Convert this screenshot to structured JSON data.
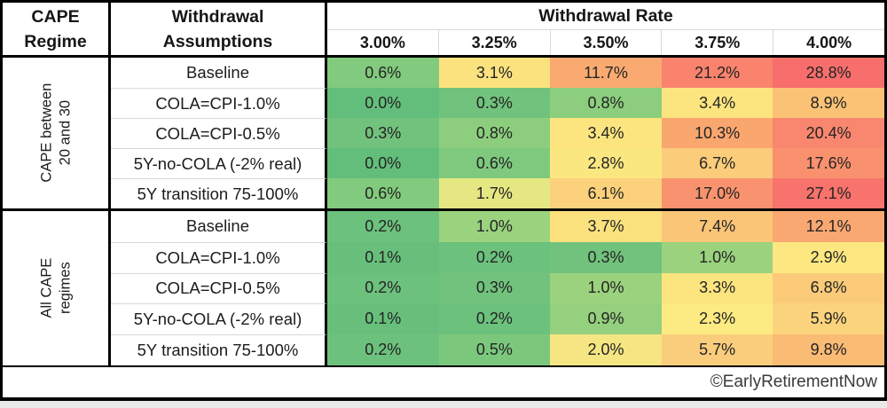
{
  "header": {
    "corner_line1": "CAPE",
    "corner_line2": "Regime",
    "assumptions_line1": "Withdrawal",
    "assumptions_line2": "Assumptions"
  },
  "footer": {
    "credit": "©EarlyRetirementNow"
  },
  "colors": {
    "border": "#000000",
    "grid_line": "#d9d9d9",
    "scale_min_green": "#63BE7B",
    "scale_mid_yellow": "#FFEB84",
    "scale_max_red": "#F8696B"
  },
  "chart_data": {
    "type": "heatmap",
    "title": "Withdrawal Rate",
    "columns": [
      "3.00%",
      "3.25%",
      "3.50%",
      "3.75%",
      "4.00%"
    ],
    "legend_position": "none",
    "row_groups": [
      {
        "group_label_line1": "CAPE between",
        "group_label_line2": "20 and 30",
        "rows": [
          {
            "label": "Baseline",
            "values": [
              "0.6%",
              "3.1%",
              "11.7%",
              "21.2%",
              "28.8%"
            ],
            "colors": [
              "#82CA7D",
              "#FCE27E",
              "#FAAA70",
              "#F9836D",
              "#F86E6C"
            ]
          },
          {
            "label": "COLA=CPI-1.0%",
            "values": [
              "0.0%",
              "0.3%",
              "0.8%",
              "3.4%",
              "8.9%"
            ],
            "colors": [
              "#63BE7B",
              "#71C27C",
              "#8CCE7D",
              "#FCE57F",
              "#FBC276"
            ]
          },
          {
            "label": "COLA=CPI-0.5%",
            "values": [
              "0.3%",
              "0.8%",
              "3.4%",
              "10.3%",
              "20.4%"
            ],
            "colors": [
              "#71C27C",
              "#8CCE7D",
              "#FCE57F",
              "#FAA66F",
              "#F9866E"
            ]
          },
          {
            "label": "5Y-no-COLA (-2% real)",
            "values": [
              "0.0%",
              "0.6%",
              "2.8%",
              "6.7%",
              "17.6%"
            ],
            "colors": [
              "#63BE7B",
              "#7EC97D",
              "#FBE780",
              "#FBCC7A",
              "#F9906E"
            ]
          },
          {
            "label": "5Y transition 75-100%",
            "values": [
              "0.6%",
              "1.7%",
              "6.1%",
              "17.0%",
              "27.1%"
            ],
            "colors": [
              "#82CA7D",
              "#E5E782",
              "#FCD17C",
              "#F9926E",
              "#F8736C"
            ]
          }
        ]
      },
      {
        "group_label_line1": "All CAPE",
        "group_label_line2": "regimes",
        "rows": [
          {
            "label": "Baseline",
            "values": [
              "0.2%",
              "1.0%",
              "3.7%",
              "7.4%",
              "12.1%"
            ],
            "colors": [
              "#6CC17C",
              "#9AD27E",
              "#FBE17D",
              "#FBC577",
              "#F9A871"
            ]
          },
          {
            "label": "COLA=CPI-1.0%",
            "values": [
              "0.1%",
              "0.2%",
              "0.3%",
              "1.0%",
              "2.9%"
            ],
            "colors": [
              "#67BF7B",
              "#6CC17C",
              "#71C27C",
              "#9AD27E",
              "#FCE780"
            ]
          },
          {
            "label": "COLA=CPI-0.5%",
            "values": [
              "0.2%",
              "0.3%",
              "1.0%",
              "3.3%",
              "6.8%"
            ],
            "colors": [
              "#6CC17C",
              "#71C27C",
              "#9AD27E",
              "#FCE47F",
              "#FBCB7A"
            ]
          },
          {
            "label": "5Y-no-COLA (-2% real)",
            "values": [
              "0.1%",
              "0.2%",
              "0.9%",
              "2.3%",
              "5.9%"
            ],
            "colors": [
              "#67BF7B",
              "#6CC17C",
              "#95D07E",
              "#FCEA82",
              "#FCD37D"
            ]
          },
          {
            "label": "5Y transition 75-100%",
            "values": [
              "0.2%",
              "0.5%",
              "2.0%",
              "5.7%",
              "9.8%"
            ],
            "colors": [
              "#6CC17C",
              "#7BC87D",
              "#F6E583",
              "#FACD7C",
              "#FABB74"
            ]
          }
        ]
      }
    ]
  }
}
